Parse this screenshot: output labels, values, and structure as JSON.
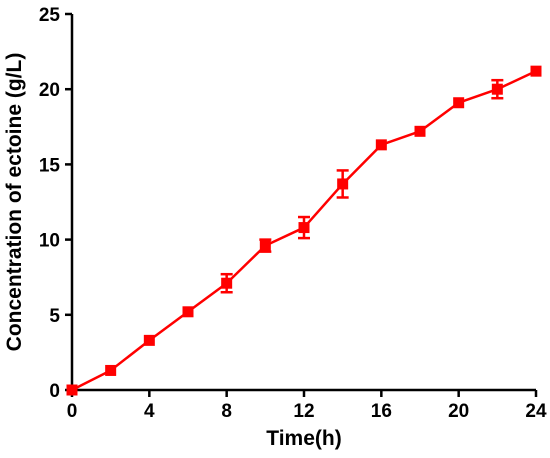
{
  "chart_data": {
    "type": "line",
    "title": "",
    "xlabel": "Time(h)",
    "ylabel": "Concentration of ectoine (g/L)",
    "xlim": [
      0,
      24
    ],
    "ylim": [
      0,
      25
    ],
    "xticks": [
      0,
      4,
      8,
      12,
      16,
      20,
      24
    ],
    "yticks": [
      0,
      5,
      10,
      15,
      20,
      25
    ],
    "grid": false,
    "legend": "none",
    "series": [
      {
        "color": "#ff0000",
        "marker": "square",
        "x": [
          0,
          2,
          4,
          6,
          8,
          10,
          12,
          14,
          16,
          18,
          20,
          22,
          24
        ],
        "y": [
          0.0,
          1.3,
          3.3,
          5.2,
          7.1,
          9.6,
          10.8,
          13.7,
          16.3,
          17.2,
          19.1,
          20.0,
          21.2
        ],
        "error": [
          0.0,
          0.0,
          0.0,
          0.0,
          0.6,
          0.4,
          0.7,
          0.9,
          0.0,
          0.0,
          0.0,
          0.6,
          0.0
        ]
      }
    ]
  }
}
